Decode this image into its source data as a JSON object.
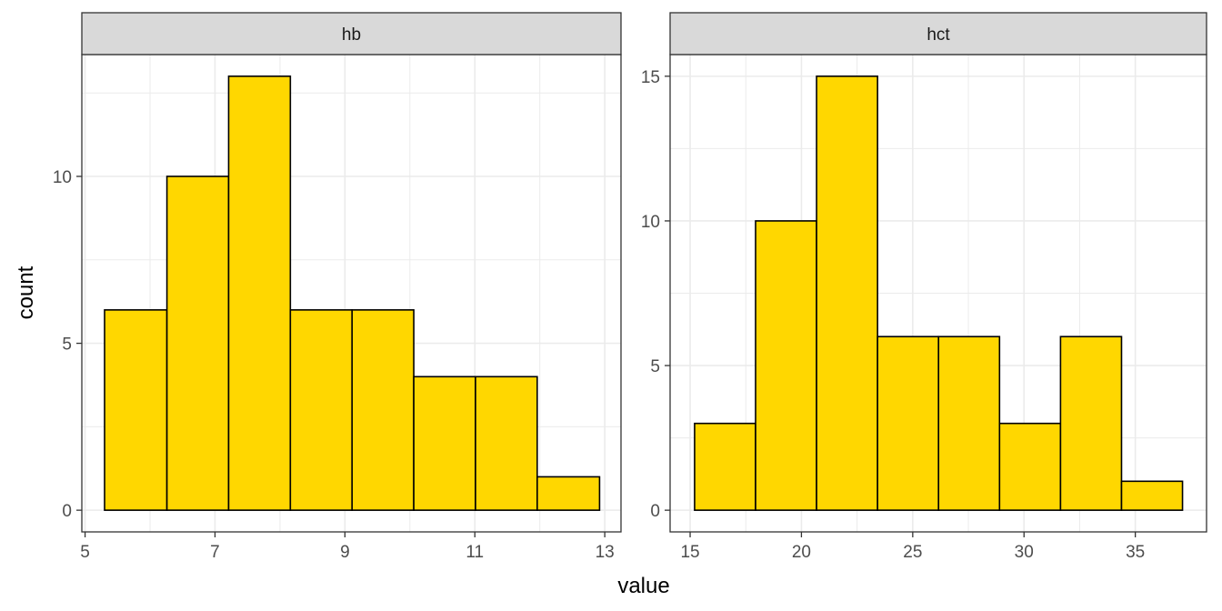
{
  "chart_data": {
    "type": "bar",
    "kind": "histogram",
    "facets_layout": "1 row, 2 columns, free scales",
    "xlabel": "value",
    "ylabel": "count",
    "bar_fill": "#FFD700",
    "bar_stroke": "#000000",
    "strip_fill": "#D9D9D9",
    "grid_color": "#EBEBEB",
    "grid": true,
    "legend": "none",
    "panels": [
      {
        "strip_label": "hb",
        "xlim": [
          4.95,
          13.25
        ],
        "ylim": [
          -0.65,
          13.65
        ],
        "xticks": [
          5,
          7,
          9,
          11,
          13
        ],
        "xtick_labels": [
          "5",
          "7",
          "9",
          "11",
          "13"
        ],
        "yticks": [
          0,
          5,
          10
        ],
        "ytick_labels": [
          "0",
          "5",
          "10"
        ],
        "bins": [
          {
            "x0": 5.3,
            "x1": 6.26,
            "count": 6
          },
          {
            "x0": 6.26,
            "x1": 7.21,
            "count": 10
          },
          {
            "x0": 7.21,
            "x1": 8.16,
            "count": 13
          },
          {
            "x0": 8.16,
            "x1": 9.11,
            "count": 6
          },
          {
            "x0": 9.11,
            "x1": 10.06,
            "count": 6
          },
          {
            "x0": 10.06,
            "x1": 11.01,
            "count": 4
          },
          {
            "x0": 11.01,
            "x1": 11.96,
            "count": 4
          },
          {
            "x0": 11.96,
            "x1": 12.92,
            "count": 1
          }
        ]
      },
      {
        "strip_label": "hct",
        "xlim": [
          14.1,
          38.2
        ],
        "ylim": [
          -0.75,
          15.75
        ],
        "xticks": [
          15,
          20,
          25,
          30,
          35
        ],
        "xtick_labels": [
          "15",
          "20",
          "25",
          "30",
          "35"
        ],
        "yticks": [
          0,
          5,
          10,
          15
        ],
        "ytick_labels": [
          "0",
          "5",
          "10",
          "15"
        ],
        "bins": [
          {
            "x0": 15.2,
            "x1": 17.94,
            "count": 3
          },
          {
            "x0": 17.94,
            "x1": 20.68,
            "count": 10
          },
          {
            "x0": 20.68,
            "x1": 23.42,
            "count": 15
          },
          {
            "x0": 23.42,
            "x1": 26.16,
            "count": 6
          },
          {
            "x0": 26.16,
            "x1": 28.9,
            "count": 6
          },
          {
            "x0": 28.9,
            "x1": 31.64,
            "count": 3
          },
          {
            "x0": 31.64,
            "x1": 34.38,
            "count": 6
          },
          {
            "x0": 34.38,
            "x1": 37.12,
            "count": 1
          }
        ]
      }
    ]
  }
}
